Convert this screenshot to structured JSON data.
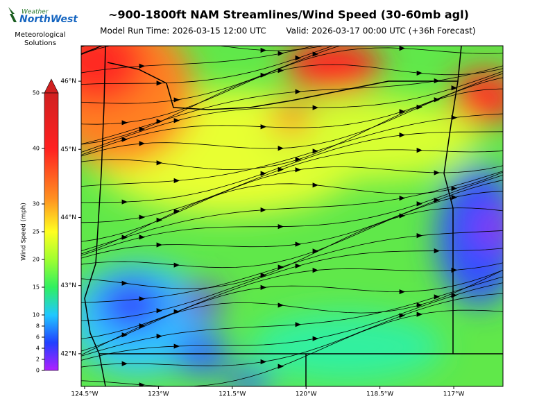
{
  "logo": {
    "line1": "Weather",
    "line2": "NorthWest",
    "line3": "Meteorological",
    "line4": "Solutions"
  },
  "header": {
    "title": "~900-1800ft NAM Streamlines/Wind Speed (30-60mb agl)",
    "model_run": "Model Run Time: 2026-03-15 12:00 UTC",
    "valid": "Valid: 2026-03-17 00:00 UTC  (+36h Forecast)"
  },
  "map": {
    "xlim": [
      -124.57,
      -116.0
    ],
    "ylim": [
      41.52,
      46.52
    ],
    "xticks": [
      {
        "value": -124.5,
        "label": "124.5°W"
      },
      {
        "value": -123,
        "label": "123°W"
      },
      {
        "value": -121.5,
        "label": "121.5°W"
      },
      {
        "value": -120,
        "label": "120°W"
      },
      {
        "value": -118.5,
        "label": "118.5°W"
      },
      {
        "value": -117,
        "label": "117°W"
      }
    ],
    "yticks": [
      {
        "value": 46,
        "label": "46°N"
      },
      {
        "value": 45,
        "label": "45°N"
      },
      {
        "value": 44,
        "label": "44°N"
      },
      {
        "value": 43,
        "label": "43°N"
      },
      {
        "value": 42,
        "label": "42°N"
      }
    ]
  },
  "colorbar": {
    "label": "Wind Speed (mph)",
    "lim": [
      0,
      50
    ],
    "ticks": [
      0,
      2,
      4,
      6,
      8,
      10,
      15,
      20,
      25,
      30,
      40,
      50
    ]
  }
}
